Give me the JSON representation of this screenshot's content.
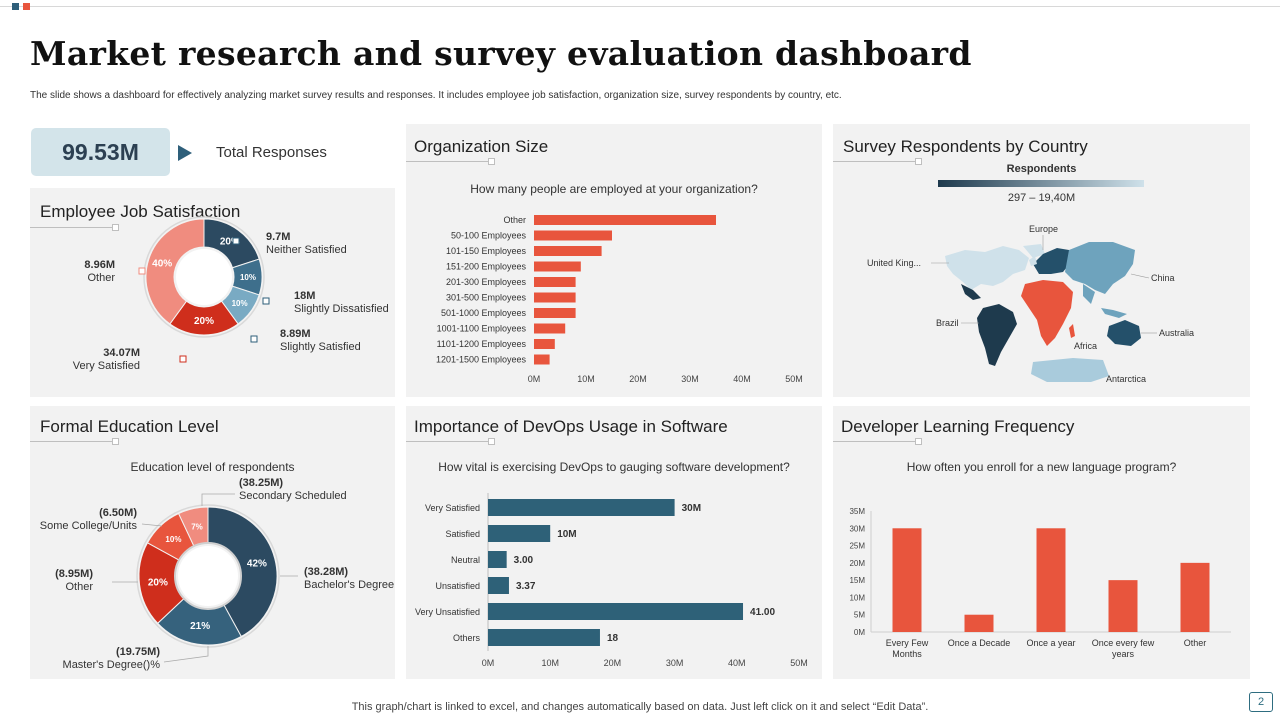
{
  "header": {
    "title": "Market research and survey evaluation dashboard",
    "subtitle": "The slide shows a dashboard for effectively analyzing market survey results and responses. It includes employee job satisfaction, organization size, survey respondents by country, etc.",
    "accent_colors": [
      "#2e5f7a",
      "#e8553d"
    ]
  },
  "kpi": {
    "value": "99.53M",
    "label": "Total Responses"
  },
  "footer": {
    "text": "This graph/chart is linked to excel,  and changes automatically based on data. Just left click on it and select “Edit Data”.",
    "page": "2"
  },
  "panels": {
    "satisfaction": {
      "title": "Employee Job Satisfaction"
    },
    "orgsize": {
      "title": "Organization Size",
      "question": "How many people are employed at your organization?"
    },
    "country": {
      "title": "Survey Respondents by Country",
      "legend_title": "Respondents",
      "legend_range": "297 – 19,40M"
    },
    "education": {
      "title": "Formal Education Level",
      "question": "Education level of respondents"
    },
    "devops": {
      "title": "Importance of DevOps Usage in Software",
      "question": "How vital is exercising DevOps to gauging software development?"
    },
    "learning": {
      "title": "Developer Learning Frequency",
      "question": "How often you enroll for a new language program?"
    }
  },
  "chart_data": [
    {
      "id": "satisfaction",
      "type": "pie",
      "title": "Employee Job Satisfaction",
      "slices": [
        {
          "label": "Neither Satisfied",
          "value_label": "9.7M",
          "pct_label": "20%",
          "pct": 20,
          "color": "#2c4a61"
        },
        {
          "label": "Slightly Dissatisfied",
          "value_label": "18M",
          "pct_label": "10%",
          "pct": 10,
          "color": "#3e6f8c"
        },
        {
          "label": "Slightly Satisfied",
          "value_label": "8.89M",
          "pct_label": "10%",
          "pct": 10,
          "color": "#79aac3"
        },
        {
          "label": "Very Satisfied",
          "value_label": "34.07M",
          "pct_label": "20%",
          "pct": 20,
          "color": "#cf2e1c"
        },
        {
          "label": "Other",
          "value_label": "8.96M",
          "pct_label": "40%",
          "pct": 40,
          "color": "#f08c7f"
        }
      ]
    },
    {
      "id": "orgsize",
      "type": "bar",
      "orientation": "horizontal",
      "title": "Organization Size",
      "categories": [
        "Other",
        "50-100 Employees",
        "101-150 Employees",
        "151-200 Employees",
        "201-300 Employees",
        "301-500 Employees",
        "501-1000 Employees",
        "1001-1100 Employees",
        "1101-1200 Employees",
        "1201-1500 Employees"
      ],
      "values": [
        35,
        15,
        13,
        9,
        8,
        8,
        8,
        6,
        4,
        3
      ],
      "unit": "M",
      "xlim": [
        0,
        50
      ],
      "xticks": [
        "0M",
        "10M",
        "20M",
        "30M",
        "40M",
        "50M"
      ],
      "color": "#e8553d"
    },
    {
      "id": "education",
      "type": "pie",
      "title": "Formal Education Level",
      "slices": [
        {
          "label": "Bachelor's Degree",
          "value_label": "(38.28M)",
          "pct_label": "42%",
          "pct": 42,
          "color": "#2c4a61"
        },
        {
          "label": "Master's Degree()%",
          "value_label": "(19.75M)",
          "pct_label": "21%",
          "pct": 21,
          "color": "#36627d"
        },
        {
          "label": "Other",
          "value_label": "(8.95M)",
          "pct_label": "20%",
          "pct": 20,
          "color": "#cf2e1c"
        },
        {
          "label": "Some College/Units",
          "value_label": "(6.50M)",
          "pct_label": "10%",
          "pct": 10,
          "color": "#e8553d"
        },
        {
          "label": "Secondary Scheduled",
          "value_label": "(38.25M)",
          "pct_label": "7%",
          "pct": 7,
          "color": "#f08c7f"
        }
      ]
    },
    {
      "id": "devops",
      "type": "bar",
      "orientation": "horizontal",
      "title": "Importance of DevOps Usage in Software",
      "categories": [
        "Very Satisfied",
        "Satisfied",
        "Neutral",
        "Unsatisfied",
        "Very Unsatisfied",
        "Others"
      ],
      "values": [
        30,
        10,
        3.0,
        3.37,
        41.0,
        18
      ],
      "data_labels": [
        "30M",
        "10M",
        "3.00",
        "3.37",
        "41.00",
        "18"
      ],
      "xlim": [
        0,
        50
      ],
      "xticks": [
        "0M",
        "10M",
        "20M",
        "30M",
        "40M",
        "50M"
      ],
      "color": "#2e6178"
    },
    {
      "id": "learning",
      "type": "bar",
      "orientation": "vertical",
      "title": "Developer Learning Frequency",
      "categories": [
        [
          "Every Few",
          "Months"
        ],
        [
          "Once a Decade"
        ],
        [
          "Once a year"
        ],
        [
          "Once every few",
          "years"
        ],
        [
          "Other"
        ]
      ],
      "values": [
        30,
        5,
        30,
        15,
        20
      ],
      "ylim": [
        0,
        35
      ],
      "yticks": [
        "0M",
        "5M",
        "10M",
        "15M",
        "20M",
        "25M",
        "30M",
        "35M"
      ],
      "color": "#e8553d"
    },
    {
      "id": "country",
      "type": "map",
      "title": "Survey Respondents by Country",
      "regions": [
        {
          "label": "Europe",
          "color": "#24506a"
        },
        {
          "label": "United King...",
          "color": "#cfe1ea"
        },
        {
          "label": "China",
          "color": "#6ea3bd"
        },
        {
          "label": "Brazil",
          "color": "#1e3a4d"
        },
        {
          "label": "Africa",
          "color": "#e8553d"
        },
        {
          "label": "Australia",
          "color": "#24506a"
        },
        {
          "label": "Antarctica",
          "color": "#a9cbdc"
        }
      ]
    }
  ]
}
